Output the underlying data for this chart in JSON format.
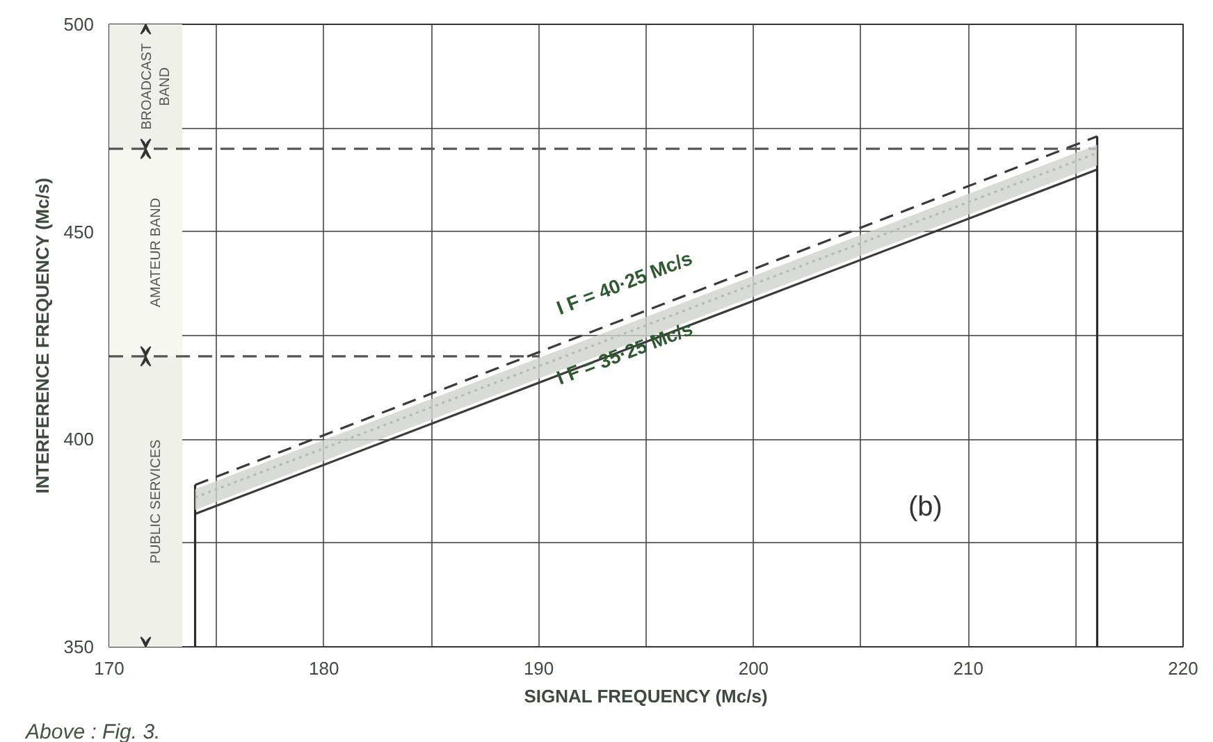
{
  "chart_data": {
    "type": "line",
    "xlabel": "SIGNAL FREQUENCY (Mc/s)",
    "ylabel": "INTERFERENCE FREQUENCY (Mc/s)",
    "xlim": [
      170,
      220
    ],
    "ylim": [
      350,
      500
    ],
    "xticks": [
      170,
      {
        "value": 175,
        "label": null
      },
      180,
      {
        "value": 185,
        "label": null
      },
      190,
      {
        "value": 195,
        "label": null
      },
      200,
      {
        "value": 205,
        "label": null
      },
      210,
      {
        "value": 215,
        "label": null
      },
      220
    ],
    "yticks": [
      350,
      {
        "value": 375,
        "label": null
      },
      400,
      {
        "value": 425,
        "label": null
      },
      450,
      {
        "value": 475,
        "label": null
      },
      500
    ],
    "grid": true,
    "legend": false,
    "series": [
      {
        "name": "I F = 40·25 Mc/s",
        "color": "#3a3a3a",
        "line_style": "dashed",
        "x": [
          174,
          216
        ],
        "values": [
          389,
          473
        ]
      },
      {
        "color": "#555555",
        "line_style": "dotted",
        "x": [
          174,
          216
        ],
        "values": [
          386,
          469
        ],
        "lower": [
          383,
          466
        ],
        "upper": [
          388,
          471
        ]
      },
      {
        "name": "I F = 35·25 Mc/s",
        "color": "#3a3a3a",
        "line_style": "solid",
        "x": [
          174,
          216
        ],
        "values": [
          382,
          465
        ]
      },
      {
        "color": "#2a2a2a",
        "line_style": "solid",
        "x": [
          174,
          174
        ],
        "values": [
          350,
          389
        ]
      },
      {
        "color": "#2a2a2a",
        "line_style": "solid",
        "x": [
          216,
          216
        ],
        "values": [
          350,
          473
        ]
      },
      {
        "color": "#555555",
        "line_style": "dashed",
        "x": [
          170,
          216
        ],
        "values": [
          470,
          470
        ]
      },
      {
        "color": "#555555",
        "line_style": "dashed",
        "x": [
          170,
          190
        ],
        "values": [
          420,
          420
        ]
      }
    ],
    "bands": [
      {
        "axis": "y",
        "from": 470,
        "to": 500,
        "label": "BROADCAST BAND",
        "color": "#f0f0ea"
      },
      {
        "axis": "y",
        "from": 420,
        "to": 470,
        "label": "AMATEUR BAND",
        "color": "#f7f7f2"
      },
      {
        "axis": "y",
        "from": 350,
        "to": 420,
        "label": "PUBLIC SERVICES",
        "color": "#f0f0ea"
      }
    ],
    "annotations": [
      "(b)",
      "Above : Fig. 3."
    ]
  }
}
